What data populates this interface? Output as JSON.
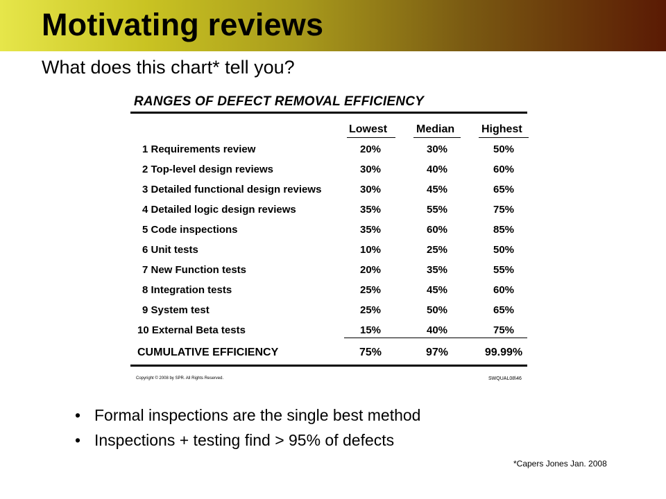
{
  "slide": {
    "title": "Motivating reviews",
    "subtitle": "What does this chart* tell you?",
    "footnote": "*Capers Jones Jan. 2008"
  },
  "table": {
    "heading": "RANGES OF DEFECT REMOVAL EFFICIENCY",
    "columns": [
      "Lowest",
      "Median",
      "Highest"
    ],
    "rows": [
      {
        "name": "1 Requirements review",
        "lowest": "20%",
        "median": "30%",
        "highest": "50%"
      },
      {
        "name": "2 Top-level design reviews",
        "lowest": "30%",
        "median": "40%",
        "highest": "60%"
      },
      {
        "name": "3 Detailed functional design reviews",
        "lowest": "30%",
        "median": "45%",
        "highest": "65%"
      },
      {
        "name": "4 Detailed logic design reviews",
        "lowest": "35%",
        "median": "55%",
        "highest": "75%"
      },
      {
        "name": "5 Code inspections",
        "lowest": "35%",
        "median": "60%",
        "highest": "85%"
      },
      {
        "name": "6 Unit tests",
        "lowest": "10%",
        "median": "25%",
        "highest": "50%"
      },
      {
        "name": "7 New Function tests",
        "lowest": "20%",
        "median": "35%",
        "highest": "55%"
      },
      {
        "name": "8 Integration tests",
        "lowest": "25%",
        "median": "45%",
        "highest": "60%"
      },
      {
        "name": "9 System test",
        "lowest": "25%",
        "median": "50%",
        "highest": "65%"
      },
      {
        "name": "10 External Beta tests",
        "lowest": "15%",
        "median": "40%",
        "highest": "75%"
      }
    ],
    "cumulative": {
      "name": "CUMULATIVE EFFICIENCY",
      "lowest": "75%",
      "median": "97%",
      "highest": "99.99%"
    },
    "copyright": "Copyright © 2008 by SPR.  All Rights Reserved.",
    "code": "SWQUAL08\\46"
  },
  "bullets": [
    "Formal inspections are the single best method",
    "Inspections + testing find > 95% of defects"
  ]
}
